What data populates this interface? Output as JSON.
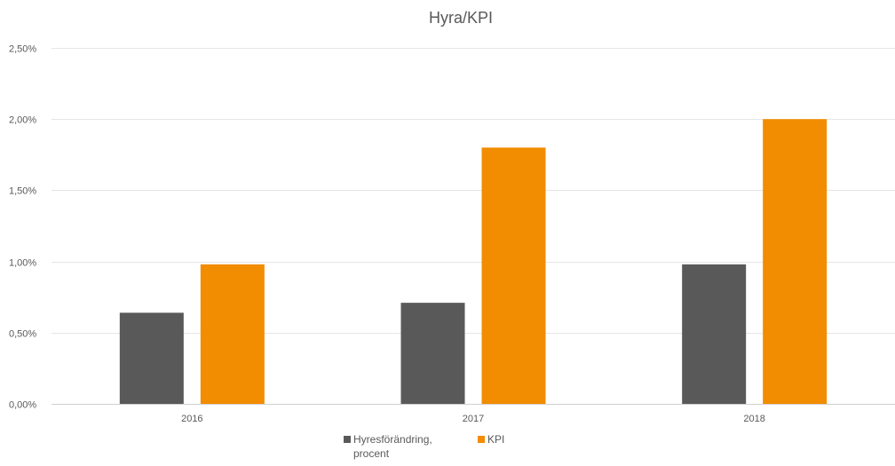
{
  "chart_data": {
    "type": "bar",
    "title": "Hyra/KPI",
    "categories": [
      "2016",
      "2017",
      "2018"
    ],
    "series": [
      {
        "name": "Hyresförändring, procent",
        "values": [
          0.0064,
          0.0071,
          0.0098
        ],
        "color": "#595959"
      },
      {
        "name": "KPI",
        "values": [
          0.0098,
          0.018,
          0.02
        ],
        "color": "#f28c00"
      }
    ],
    "ylim": [
      0,
      0.025
    ],
    "yticks": [
      0,
      0.005,
      0.01,
      0.015,
      0.02,
      0.025
    ],
    "ytick_labels": [
      "0,00%",
      "0,50%",
      "1,00%",
      "1,50%",
      "2,00%",
      "2,50%"
    ],
    "grid": true,
    "legend": "bottom",
    "legend_lines": [
      [
        "Hyresförändring,",
        "procent"
      ],
      [
        "KPI"
      ]
    ]
  }
}
